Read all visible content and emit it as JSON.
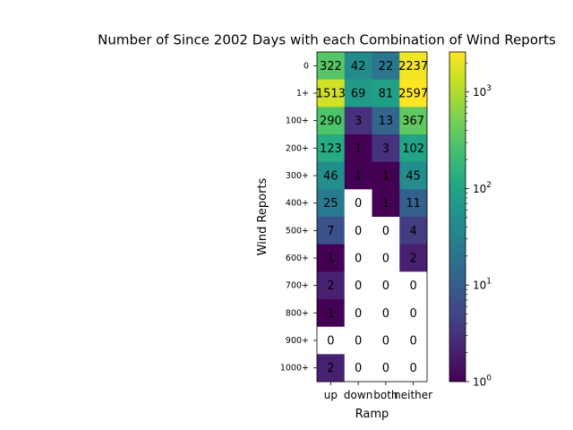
{
  "chart_data": {
    "type": "heatmap",
    "title": "Number of Since 2002 Days with each Combination of Wind Reports",
    "xlabel": "Ramp",
    "ylabel": "Wind Reports",
    "x_categories": [
      "up",
      "down",
      "both",
      "neither"
    ],
    "y_categories": [
      "0",
      "1+",
      "100+",
      "200+",
      "300+",
      "400+",
      "500+",
      "600+",
      "700+",
      "800+",
      "900+",
      "1000+"
    ],
    "values": [
      [
        322,
        42,
        22,
        2237
      ],
      [
        1513,
        69,
        81,
        2597
      ],
      [
        290,
        3,
        13,
        367
      ],
      [
        123,
        1,
        3,
        102
      ],
      [
        46,
        1,
        1,
        45
      ],
      [
        25,
        0,
        1,
        11
      ],
      [
        7,
        0,
        0,
        4
      ],
      [
        1,
        0,
        0,
        2
      ],
      [
        2,
        0,
        0,
        0
      ],
      [
        1,
        0,
        0,
        0
      ],
      [
        0,
        0,
        0,
        0
      ],
      [
        2,
        0,
        0,
        0
      ]
    ],
    "color_scale": "log",
    "colormap": "viridis",
    "colorbar": {
      "range": [
        1,
        2597
      ],
      "ticks": [
        {
          "value": 1,
          "base": "10",
          "exp": "0"
        },
        {
          "value": 10,
          "base": "10",
          "exp": "1"
        },
        {
          "value": 100,
          "base": "10",
          "exp": "2"
        },
        {
          "value": 1000,
          "base": "10",
          "exp": "3"
        }
      ]
    },
    "zero_cell_color": "#ffffff",
    "grid": false
  }
}
